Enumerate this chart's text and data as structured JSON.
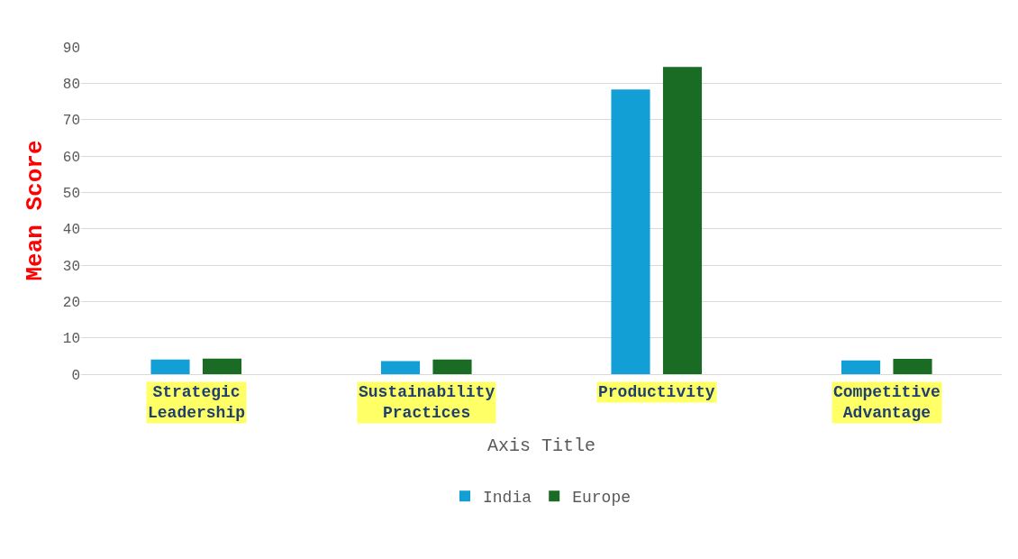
{
  "chart_data": {
    "type": "bar",
    "xlabel": "Axis Title",
    "ylabel": "Mean Score",
    "categories": [
      "Strategic Leadership",
      "Sustainability Practices",
      "Productivity",
      "Competitive Advantage"
    ],
    "series": [
      {
        "name": "India",
        "color": "#119fd6",
        "values": [
          4.0,
          3.6,
          78.3,
          3.8
        ]
      },
      {
        "name": "Europe",
        "color": "#1a6b24",
        "values": [
          4.3,
          4.0,
          84.5,
          4.2
        ]
      }
    ],
    "ylim": [
      0,
      90
    ],
    "yticks": [
      0,
      10,
      20,
      30,
      40,
      50,
      60,
      70,
      80,
      90
    ],
    "grid": "y",
    "legend": "bottom"
  }
}
